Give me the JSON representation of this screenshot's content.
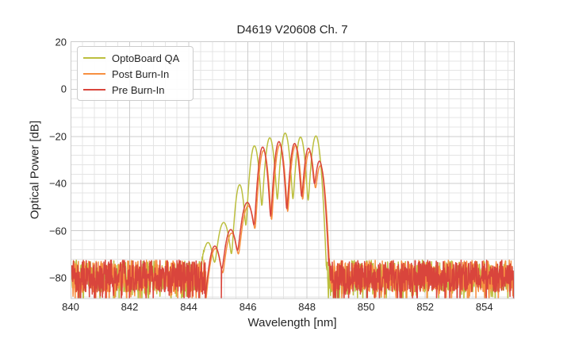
{
  "chart_data": {
    "type": "line",
    "title": "D4619 V20608 Ch. 7",
    "xlabel": "Wavelength [nm]",
    "ylabel": "Optical Power [dB]",
    "xlim": [
      840,
      855
    ],
    "ylim": [
      -88.75,
      20
    ],
    "xticks": {
      "values": [
        840,
        842,
        844,
        846,
        848,
        850,
        852,
        854
      ],
      "labels": [
        "840",
        "842",
        "844",
        "846",
        "848",
        "850",
        "852",
        "854"
      ]
    },
    "yticks": {
      "values": [
        20,
        0,
        -20,
        -40,
        -60,
        -80
      ],
      "labels": [
        "20",
        "0",
        "−20",
        "−40",
        "−60",
        "−80"
      ]
    },
    "grid": {
      "major_step_x": 2,
      "minor_step_x": 0.4,
      "major_step_y": 20,
      "minor_step_y": 4,
      "major_color": "#cccccc",
      "minor_color": "#e4e4e4",
      "border_color": "#cccccc"
    },
    "legend": {
      "position": "upper left"
    },
    "mode_shape": {
      "sigma_strong_nm": 0.07,
      "sigma_weak_nm": 0.1,
      "weak_threshold_dB": -45
    },
    "series": [
      {
        "name": "OptoBoard QA",
        "color": "#bcbf3f",
        "seed": 101,
        "modes": [
          [
            844.65,
            -65.0
          ],
          [
            845.18,
            -56.5
          ],
          [
            845.72,
            -40.5
          ],
          [
            846.22,
            -24.0
          ],
          [
            846.74,
            -20.6
          ],
          [
            847.26,
            -18.6
          ],
          [
            847.78,
            -20.3
          ],
          [
            848.3,
            -19.8
          ]
        ],
        "noise_segments": [
          [
            840.0,
            844.56
          ],
          [
            848.66,
            855.0
          ]
        ],
        "noise": {
          "top_dB": -72.5,
          "band_dB": 13.5,
          "spike_prob": 0.2,
          "spike_extra_dB": 9
        }
      },
      {
        "name": "Post Burn-In",
        "color": "#f79041",
        "seed": 202,
        "modes": [
          [
            844.9,
            -67.5
          ],
          [
            845.45,
            -61.0
          ],
          [
            846.01,
            -49.5
          ],
          [
            846.53,
            -26.0
          ],
          [
            847.08,
            -23.5
          ],
          [
            847.61,
            -23.8
          ],
          [
            848.08,
            -26.5
          ],
          [
            848.45,
            -32.5
          ]
        ],
        "noise_segments": [
          [
            840.0,
            844.58
          ],
          [
            848.7,
            855.0
          ]
        ],
        "noise": {
          "top_dB": -72.5,
          "band_dB": 13.5,
          "spike_prob": 0.2,
          "spike_extra_dB": 9
        }
      },
      {
        "name": "Pre Burn-In",
        "color": "#d9453c",
        "seed": 303,
        "modes": [
          [
            844.88,
            -66.5
          ],
          [
            845.42,
            -59.5
          ],
          [
            845.98,
            -48.0
          ],
          [
            846.5,
            -24.5
          ],
          [
            847.05,
            -22.2
          ],
          [
            847.58,
            -23.0
          ],
          [
            848.05,
            -25.0
          ],
          [
            848.42,
            -30.5
          ]
        ],
        "noise_segments": [
          [
            840.0,
            844.55
          ],
          [
            848.74,
            855.0
          ]
        ],
        "dropouts": [
          [
            845.1,
            -88.5
          ]
        ],
        "noise": {
          "top_dB": -72.5,
          "band_dB": 13.5,
          "spike_prob": 0.2,
          "spike_extra_dB": 9
        }
      }
    ]
  }
}
